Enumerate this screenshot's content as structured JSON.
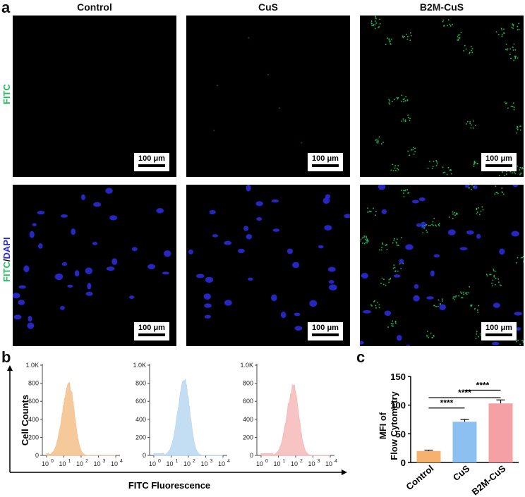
{
  "panel_a": {
    "letter": "a",
    "columns": [
      "Control",
      "CuS",
      "B2M-CuS"
    ],
    "row_labels": {
      "fitc": "FITC",
      "merge_green": "FITC",
      "merge_sep": "/",
      "merge_blue": "DAPI"
    },
    "scale_bar": "100 μm",
    "colors": {
      "fitc": "#1fbf5a",
      "dapi": "#2a2ad8"
    }
  },
  "panel_b": {
    "letter": "b",
    "ylabel": "Cell Counts",
    "xlabel": "FITC Fluorescence",
    "y_ticks": [
      "0",
      "200",
      "400",
      "600",
      "800",
      "1.0K"
    ],
    "x_tick_bases": [
      "10",
      "10",
      "10",
      "10",
      "10"
    ],
    "x_tick_exps": [
      "0",
      "1",
      "2",
      "3",
      "4"
    ]
  },
  "panel_c": {
    "letter": "c",
    "significance": [
      "****",
      "****",
      "****"
    ]
  },
  "chart_data": [
    {
      "type": "area",
      "title": "",
      "xlabel": "FITC Fluorescence",
      "ylabel": "Cell Counts",
      "x_scale": "log",
      "xlim": [
        1,
        10000
      ],
      "ylim": [
        0,
        1000
      ],
      "series": [
        {
          "color": "#f5c08a",
          "peak_x": 20,
          "peak_count": 830
        },
        {
          "color": "#b9d8f0",
          "peak_x": 60,
          "peak_count": 870
        },
        {
          "color": "#f6b8b8",
          "peak_x": 75,
          "peak_count": 800
        }
      ]
    },
    {
      "type": "bar",
      "title": "",
      "xlabel": "",
      "ylabel": "MFI of Flow Cytometry",
      "ylim": [
        0,
        150
      ],
      "y_ticks": [
        "0",
        "50",
        "100",
        "150"
      ],
      "categories": [
        "Control",
        "CuS",
        "B2M-CuS"
      ],
      "values": [
        20,
        71,
        103
      ],
      "errors": [
        1.5,
        4,
        6
      ],
      "colors": [
        "#f6b16e",
        "#8cc0f0",
        "#f4a0a4"
      ]
    }
  ]
}
